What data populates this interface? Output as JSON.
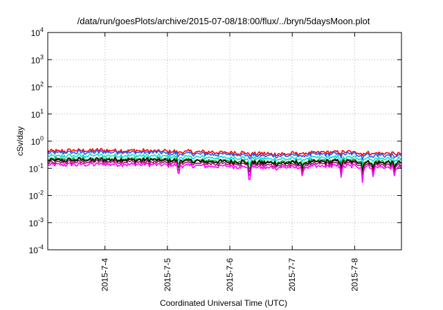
{
  "chart_data": {
    "type": "line",
    "title": "/data/run/goesPlots/archive/2015-07-08/18:00/flux/../bryn/5daysMoon.plot",
    "xlabel": "Coordinated Universal Time (UTC)",
    "ylabel": "cSv/day",
    "y_scale": "log",
    "ylim": [
      0.0001,
      10000
    ],
    "xlim": [
      "2015-07-03 02:00",
      "2015-07-08 18:00"
    ],
    "grid": true,
    "x_ticks": [
      "2015-7-4",
      "2015-7-5",
      "2015-7-6",
      "2015-7-7",
      "2015-7-8"
    ],
    "y_ticks": [
      {
        "base": "10",
        "exp": "4"
      },
      {
        "base": "10",
        "exp": "3"
      },
      {
        "base": "10",
        "exp": "2"
      },
      {
        "base": "10",
        "exp": "1"
      },
      {
        "base": "10",
        "exp": "0"
      },
      {
        "base": "10",
        "exp": "-1"
      },
      {
        "base": "10",
        "exp": "-2"
      },
      {
        "base": "10",
        "exp": "-3"
      },
      {
        "base": "10",
        "exp": "-4"
      }
    ],
    "series": [
      {
        "color": "#ff0000",
        "baseline": 0.42
      },
      {
        "color": "#1e5fff",
        "baseline": 0.36
      },
      {
        "color": "#00e0d0",
        "baseline": 0.27
      },
      {
        "color": "#1a8c1a",
        "baseline": 0.21
      },
      {
        "color": "#000000",
        "baseline": 0.19
      },
      {
        "color": "#a01060",
        "baseline": 0.16
      },
      {
        "color": "#ff00ff",
        "baseline": 0.13
      }
    ]
  }
}
